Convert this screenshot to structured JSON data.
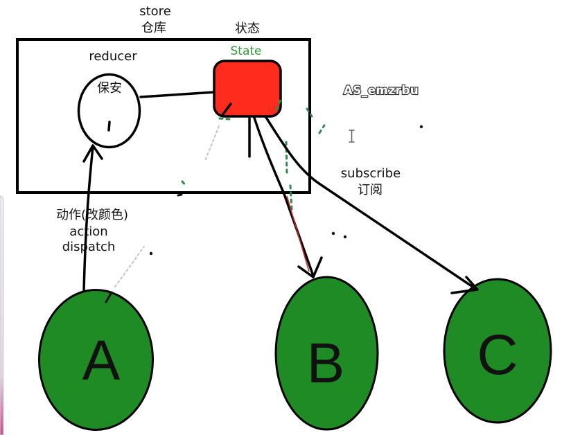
{
  "store": {
    "label": "store",
    "label_cn": "仓库"
  },
  "state": {
    "label_cn": "状态",
    "label": "State"
  },
  "reducer": {
    "label": "reducer",
    "inner_label": "保安"
  },
  "overlay_text": "AS_emzrbu",
  "subscribe": {
    "label": "subscribe",
    "label_cn": "订阅"
  },
  "dispatch": {
    "label_cn": "动作(改颜色)",
    "label_action": "action",
    "label_dispatch": "dispatch"
  },
  "nodes": [
    {
      "letter": "A"
    },
    {
      "letter": "B"
    },
    {
      "letter": "C"
    }
  ],
  "icons": {
    "cursor": "text-cursor-icon"
  },
  "colors": {
    "state_fill": "#ff2b1c",
    "state_label": "#2f9a34",
    "node_fill": "#1e8b24"
  }
}
